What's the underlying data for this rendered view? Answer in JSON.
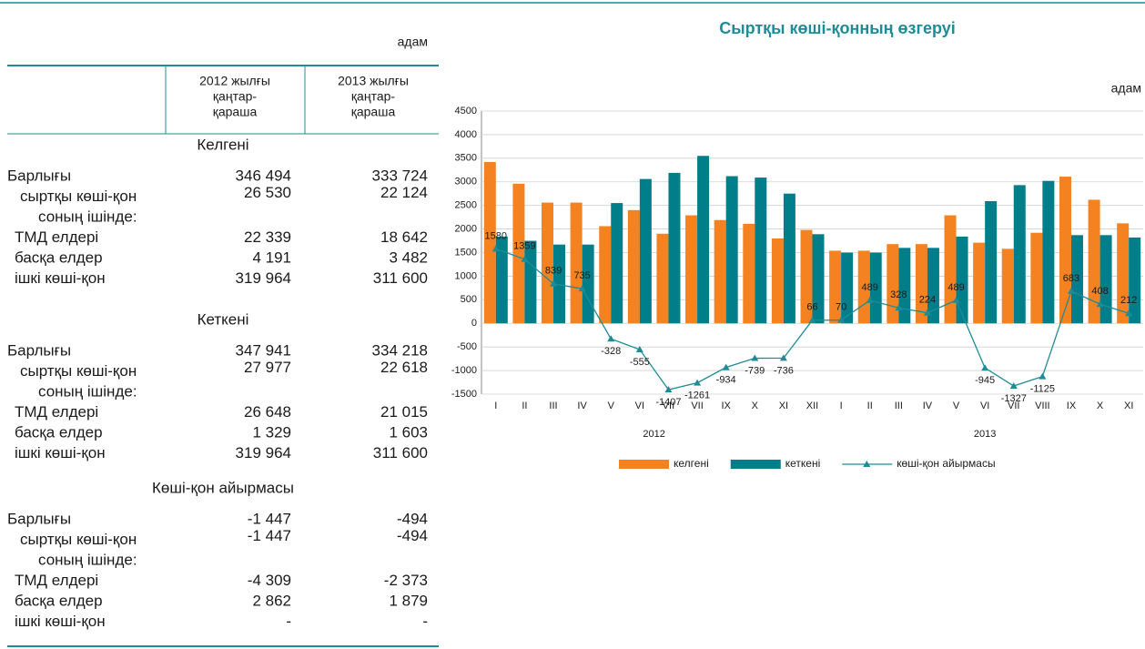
{
  "table": {
    "unit": "адам",
    "columns": [
      [
        "2012 жылғы",
        "қаңтар-",
        "қараша"
      ],
      [
        "2013 жылғы",
        "қаңтар-",
        "қараша"
      ]
    ],
    "sections": [
      {
        "title": "Келгені",
        "rows": [
          {
            "label": "Барлығы",
            "values": [
              "346 494",
              "333 724"
            ]
          },
          {
            "label": "сыртқы көші-қон",
            "values": [
              "26 530",
              "22 124"
            ]
          },
          {
            "label": "соның ішінде:",
            "values": []
          },
          {
            "label": "ТМД елдері",
            "values": [
              "22 339",
              "18 642"
            ]
          },
          {
            "label": "басқа елдер",
            "values": [
              "4 191",
              "3 482"
            ]
          },
          {
            "label": "ішкі көші-қон",
            "values": [
              "319 964",
              "311 600"
            ]
          }
        ]
      },
      {
        "title": "Кеткені",
        "rows": [
          {
            "label": "Барлығы",
            "values": [
              "347 941",
              "334 218"
            ]
          },
          {
            "label": "сыртқы көші-қон",
            "values": [
              "27 977",
              "22 618"
            ]
          },
          {
            "label": "соның ішінде:",
            "values": []
          },
          {
            "label": "ТМД елдері",
            "values": [
              "26 648",
              "21 015"
            ]
          },
          {
            "label": "басқа елдер",
            "values": [
              "1 329",
              "1 603"
            ]
          },
          {
            "label": "ішкі көші-қон",
            "values": [
              "319 964",
              "311 600"
            ]
          }
        ]
      },
      {
        "title": "Көші-қон айырмасы",
        "rows": [
          {
            "label": "Барлығы",
            "values": [
              "-1 447",
              "-494"
            ]
          },
          {
            "label": "сыртқы көші-қон",
            "values": [
              "-1 447",
              "-494"
            ]
          },
          {
            "label": "соның ішінде:",
            "values": []
          },
          {
            "label": "ТМД елдері",
            "values": [
              "-4 309",
              "-2 373"
            ]
          },
          {
            "label": "басқа елдер",
            "values": [
              "2 862",
              "1 879"
            ]
          },
          {
            "label": "ішкі көші-қон",
            "values": [
              "-",
              "-"
            ]
          }
        ]
      }
    ]
  },
  "chart_data": {
    "type": "bar",
    "title": "Сыртқы көші-қонның өзгеруі",
    "unit": "адам",
    "categories": [
      "I",
      "II",
      "III",
      "IV",
      "V",
      "VI",
      "VII",
      "VII",
      "IX",
      "X",
      "XI",
      "XII",
      "I",
      "II",
      "III",
      "IV",
      "V",
      "VI",
      "VII",
      "VIII",
      "IX",
      "X",
      "XI"
    ],
    "groups": [
      "2012",
      "2013"
    ],
    "ylim": [
      -1500,
      4500
    ],
    "yticks": [
      -1500,
      -1000,
      -500,
      0,
      500,
      1000,
      1500,
      2000,
      2500,
      3000,
      3500,
      4000,
      4500
    ],
    "grid": true,
    "legend": "bottom",
    "series": [
      {
        "name": "келгені",
        "type": "bar",
        "color": "#f58220",
        "values": [
          3420,
          2960,
          2560,
          2560,
          2060,
          2400,
          1900,
          2290,
          2190,
          2110,
          1800,
          1980,
          1540,
          1540,
          1680,
          1680,
          2290,
          1710,
          1580,
          1920,
          3110,
          2620,
          2120
        ]
      },
      {
        "name": "кеткені",
        "type": "bar",
        "color": "#007f8b",
        "values": [
          1840,
          1750,
          1670,
          1670,
          2550,
          3060,
          3190,
          3550,
          3120,
          3090,
          2750,
          1890,
          1500,
          1500,
          1600,
          1600,
          1840,
          2590,
          2930,
          3020,
          1870,
          1870,
          1820
        ]
      },
      {
        "name": "көші-қон айырмасы",
        "type": "line",
        "color": "#1e8c96",
        "values": [
          1580,
          1359,
          839,
          735,
          -328,
          -555,
          -1407,
          -1261,
          -934,
          -739,
          -736,
          66,
          70,
          489,
          328,
          224,
          489,
          -945,
          -1327,
          -1125,
          683,
          408,
          212
        ]
      }
    ]
  }
}
